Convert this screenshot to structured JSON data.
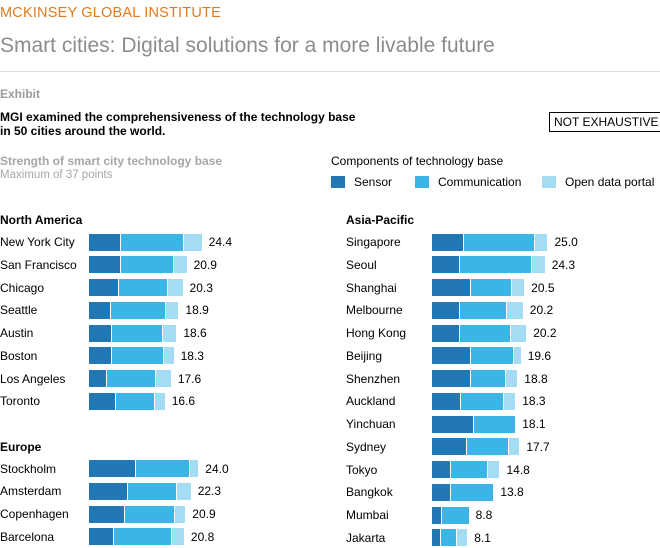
{
  "header": {
    "brand": "MCKINSEY GLOBAL INSTITUTE",
    "title": "Smart cities: Digital solutions for a more livable future"
  },
  "exhibit": {
    "label": "Exhibit",
    "subtitle_line1": "MGI examined the comprehensiveness of the technology base",
    "subtitle_line2": "in 50 cities around the world.",
    "badge": "NOT EXHAUSTIVE",
    "strength_label": "Strength of smart city technology base",
    "strength_note": "Maximum of 37 points"
  },
  "legend": {
    "title": "Components of technology base",
    "items": [
      {
        "label": "Sensor",
        "color": "#2178b5"
      },
      {
        "label": "Communication",
        "color": "#3ab5e6"
      },
      {
        "label": "Open data portal",
        "color": "#a4dcf3"
      }
    ]
  },
  "chart_data": {
    "type": "bar",
    "orientation": "horizontal",
    "stacked": true,
    "series_names": [
      "Sensor",
      "Communication",
      "Open data portal"
    ],
    "max_points": 37,
    "groups": [
      {
        "name": "North America",
        "rows": [
          {
            "city": "New York City",
            "values": [
              4.6,
              9.3,
              2.7
            ],
            "total": "24.4"
          },
          {
            "city": "San Francisco",
            "values": [
              4.6,
              7.8,
              2.0
            ],
            "total": "20.9"
          },
          {
            "city": "Chicago",
            "values": [
              4.4,
              7.2,
              2.2
            ],
            "total": "20.3"
          },
          {
            "city": "Seattle",
            "values": [
              3.2,
              8.0,
              2.0
            ],
            "total": "18.9"
          },
          {
            "city": "Austin",
            "values": [
              3.4,
              7.4,
              2.1
            ],
            "total": "18.6"
          },
          {
            "city": "Boston",
            "values": [
              3.4,
              7.6,
              1.5
            ],
            "total": "18.3"
          },
          {
            "city": "Los Angeles",
            "values": [
              2.6,
              7.2,
              2.3
            ],
            "total": "17.6"
          },
          {
            "city": "Toronto",
            "values": [
              3.9,
              5.8,
              1.5
            ],
            "total": "16.6"
          }
        ]
      },
      {
        "name": "Europe",
        "rows": [
          {
            "city": "Stockholm",
            "values": [
              6.9,
              7.8,
              1.4
            ],
            "total": "24.0"
          },
          {
            "city": "Amsterdam",
            "values": [
              5.7,
              7.2,
              2.1
            ],
            "total": "22.3"
          },
          {
            "city": "Copenhagen",
            "values": [
              5.2,
              7.4,
              1.6
            ],
            "total": "20.9"
          },
          {
            "city": "Barcelona",
            "values": [
              3.6,
              8.5,
              1.9
            ],
            "total": "20.8"
          }
        ]
      },
      {
        "name": "Asia-Pacific",
        "rows": [
          {
            "city": "Singapore",
            "values": [
              4.7,
              10.3,
              2.0
            ],
            "total": "25.0"
          },
          {
            "city": "Seoul",
            "values": [
              4.1,
              10.5,
              2.0
            ],
            "total": "24.3"
          },
          {
            "city": "Shanghai",
            "values": [
              5.7,
              6.0,
              1.9
            ],
            "total": "20.5"
          },
          {
            "city": "Melbourne",
            "values": [
              4.1,
              6.9,
              2.4
            ],
            "total": "20.2"
          },
          {
            "city": "Hong Kong",
            "values": [
              4.1,
              7.4,
              2.4
            ],
            "total": "20.2"
          },
          {
            "city": "Beijing",
            "values": [
              5.7,
              6.2,
              1.2
            ],
            "total": "19.6"
          },
          {
            "city": "Shenzhen",
            "values": [
              5.7,
              5.1,
              1.8
            ],
            "total": "18.8"
          },
          {
            "city": "Auckland",
            "values": [
              4.2,
              6.3,
              1.8
            ],
            "total": "18.3"
          },
          {
            "city": "Yinchuan",
            "values": [
              6.1,
              6.2,
              0.0
            ],
            "total": "18.1"
          },
          {
            "city": "Sydney",
            "values": [
              5.1,
              6.2,
              1.6
            ],
            "total": "17.7"
          },
          {
            "city": "Tokyo",
            "values": [
              2.8,
              5.4,
              1.8
            ],
            "total": "14.8"
          },
          {
            "city": "Bangkok",
            "values": [
              2.8,
              6.3,
              0.0
            ],
            "total": "13.8"
          },
          {
            "city": "Mumbai",
            "values": [
              1.4,
              4.1,
              0.0
            ],
            "total": "8.8"
          },
          {
            "city": "Jakarta",
            "values": [
              1.3,
              2.4,
              1.6
            ],
            "total": "8.1"
          }
        ]
      }
    ]
  }
}
